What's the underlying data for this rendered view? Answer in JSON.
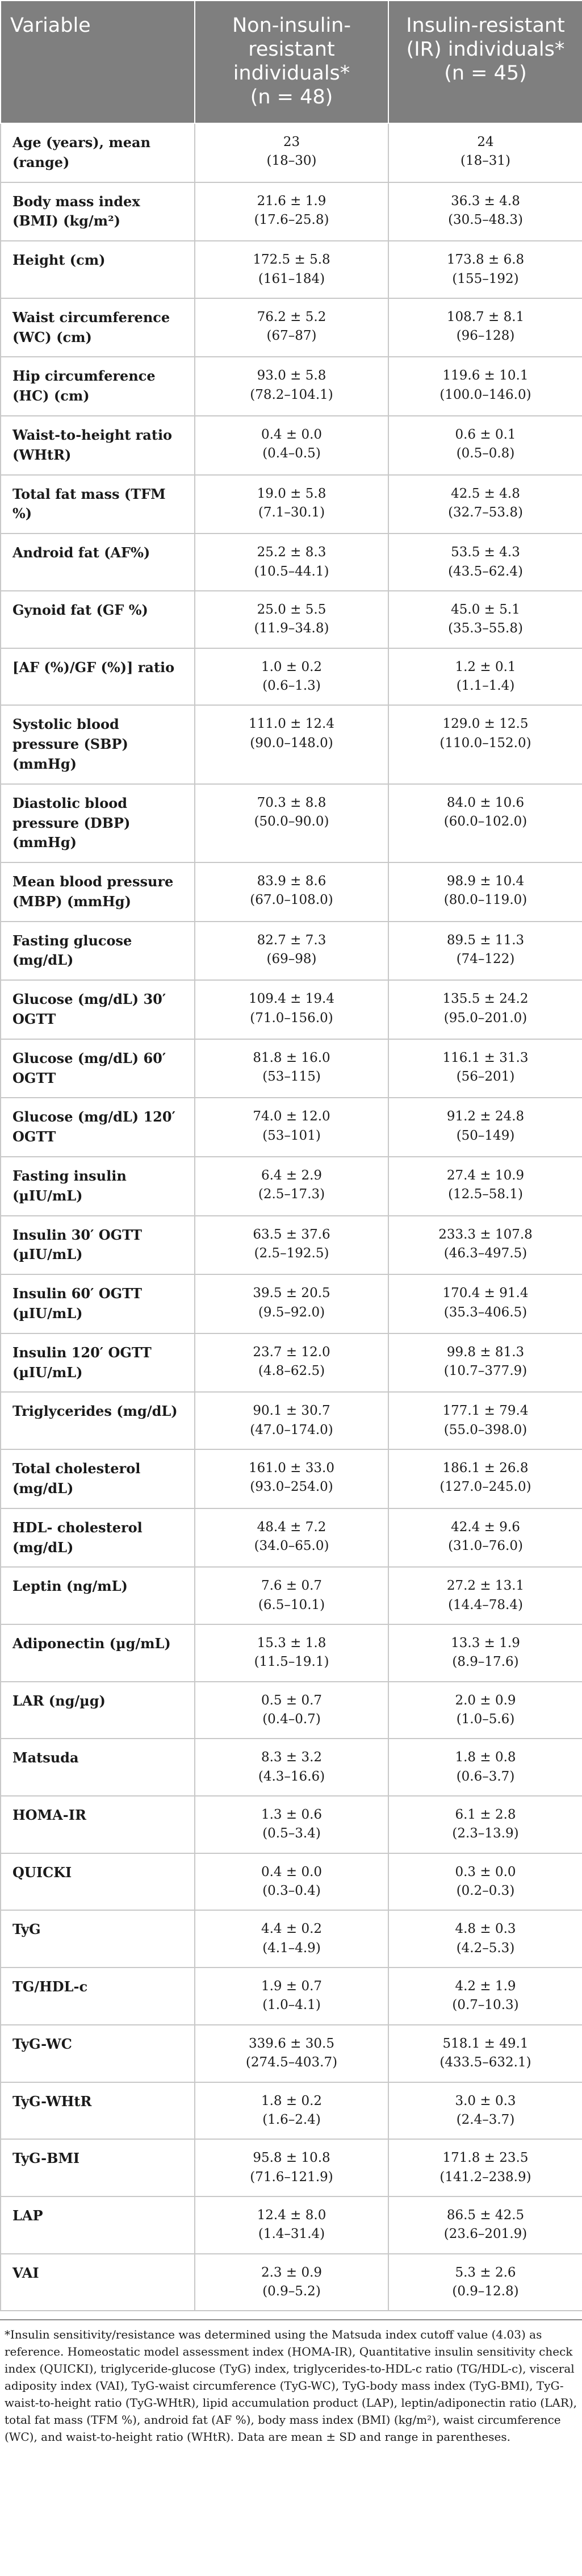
{
  "header": {
    "variable": "Variable",
    "group1_line1": "Non-insulin-",
    "group1_line2": "resistant",
    "group1_line3": "individuals*",
    "group1_n": "(n = 48)",
    "group2_line1": "Insulin-resistant",
    "group2_line2": "(IR) individuals*",
    "group2_n": "(n = 45)"
  },
  "rows": [
    {
      "label": "Age (years), mean (range)",
      "g1": "23",
      "g1r": "(18–30)",
      "g2": "24",
      "g2r": "(18–31)"
    },
    {
      "label": "Body mass index (BMI) (kg/m²)",
      "g1": "21.6 ± 1.9",
      "g1r": "(17.6–25.8)",
      "g2": "36.3 ± 4.8",
      "g2r": "(30.5–48.3)"
    },
    {
      "label": "Height (cm)",
      "g1": "172.5 ± 5.8",
      "g1r": "(161–184)",
      "g2": "173.8 ± 6.8",
      "g2r": "(155–192)"
    },
    {
      "label": "Waist circumference (WC) (cm)",
      "g1": "76.2 ± 5.2",
      "g1r": "(67–87)",
      "g2": "108.7 ± 8.1",
      "g2r": "(96–128)"
    },
    {
      "label": "Hip circumference (HC) (cm)",
      "g1": "93.0 ± 5.8",
      "g1r": "(78.2–104.1)",
      "g2": "119.6 ± 10.1",
      "g2r": "(100.0–146.0)"
    },
    {
      "label": "Waist-to-height ratio (WHtR)",
      "g1": "0.4 ± 0.0",
      "g1r": "(0.4–0.5)",
      "g2": "0.6 ± 0.1",
      "g2r": "(0.5–0.8)"
    },
    {
      "label": "Total fat mass (TFM %)",
      "g1": "19.0 ± 5.8",
      "g1r": "(7.1–30.1)",
      "g2": "42.5 ± 4.8",
      "g2r": "(32.7–53.8)"
    },
    {
      "label": "Android fat (AF%)",
      "g1": "25.2 ± 8.3",
      "g1r": "(10.5–44.1)",
      "g2": "53.5 ± 4.3",
      "g2r": "(43.5–62.4)"
    },
    {
      "label": "Gynoid fat (GF %)",
      "g1": "25.0 ± 5.5",
      "g1r": "(11.9–34.8)",
      "g2": "45.0 ± 5.1",
      "g2r": "(35.3–55.8)"
    },
    {
      "label": "[AF (%)/GF (%)] ratio",
      "g1": "1.0 ± 0.2",
      "g1r": "(0.6–1.3)",
      "g2": "1.2 ± 0.1",
      "g2r": "(1.1–1.4)"
    },
    {
      "label": "Systolic blood pressure (SBP) (mmHg)",
      "g1": "111.0 ± 12.4",
      "g1r": "(90.0–148.0)",
      "g2": "129.0 ± 12.5",
      "g2r": "(110.0–152.0)"
    },
    {
      "label": "Diastolic blood pressure (DBP) (mmHg)",
      "g1": "70.3 ± 8.8",
      "g1r": "(50.0–90.0)",
      "g2": "84.0 ± 10.6",
      "g2r": "(60.0–102.0)"
    },
    {
      "label": "Mean blood pressure (MBP) (mmHg)",
      "g1": "83.9 ± 8.6",
      "g1r": "(67.0–108.0)",
      "g2": "98.9 ± 10.4",
      "g2r": "(80.0–119.0)"
    },
    {
      "label": "Fasting glucose (mg/dL)",
      "g1": "82.7 ± 7.3",
      "g1r": "(69–98)",
      "g2": "89.5 ± 11.3",
      "g2r": "(74–122)"
    },
    {
      "label": "Glucose (mg/dL) 30′ OGTT",
      "g1": "109.4 ± 19.4",
      "g1r": "(71.0–156.0)",
      "g2": "135.5 ± 24.2",
      "g2r": "(95.0–201.0)"
    },
    {
      "label": "Glucose (mg/dL) 60′ OGTT",
      "g1": "81.8 ± 16.0",
      "g1r": "(53–115)",
      "g2": "116.1 ± 31.3",
      "g2r": "(56–201)"
    },
    {
      "label": "Glucose (mg/dL) 120′ OGTT",
      "g1": "74.0 ± 12.0",
      "g1r": "(53–101)",
      "g2": "91.2 ± 24.8",
      "g2r": "(50–149)"
    },
    {
      "label": "Fasting insulin (µIU/mL)",
      "g1": "6.4 ± 2.9",
      "g1r": "(2.5–17.3)",
      "g2": "27.4 ± 10.9",
      "g2r": "(12.5–58.1)"
    },
    {
      "label": "Insulin 30′ OGTT (µIU/mL)",
      "g1": "63.5 ± 37.6",
      "g1r": "(2.5–192.5)",
      "g2": "233.3 ± 107.8",
      "g2r": "(46.3–497.5)"
    },
    {
      "label": "Insulin 60′ OGTT (µIU/mL)",
      "g1": "39.5 ± 20.5",
      "g1r": "(9.5–92.0)",
      "g2": "170.4 ± 91.4",
      "g2r": "(35.3–406.5)"
    },
    {
      "label": "Insulin 120′ OGTT (µIU/mL)",
      "g1": "23.7 ± 12.0",
      "g1r": "(4.8–62.5)",
      "g2": "99.8 ± 81.3",
      "g2r": "(10.7–377.9)"
    },
    {
      "label": "Triglycerides (mg/dL)",
      "g1": "90.1 ± 30.7",
      "g1r": "(47.0–174.0)",
      "g2": "177.1 ± 79.4",
      "g2r": "(55.0–398.0)"
    },
    {
      "label": "Total cholesterol (mg/dL)",
      "g1": "161.0 ± 33.0",
      "g1r": "(93.0–254.0)",
      "g2": "186.1 ± 26.8",
      "g2r": "(127.0–245.0)"
    },
    {
      "label": "HDL- cholesterol (mg/dL)",
      "g1": "48.4 ± 7.2",
      "g1r": "(34.0–65.0)",
      "g2": "42.4 ± 9.6",
      "g2r": "(31.0–76.0)"
    },
    {
      "label": "Leptin (ng/mL)",
      "g1": "7.6 ± 0.7",
      "g1r": "(6.5–10.1)",
      "g2": "27.2 ± 13.1",
      "g2r": "(14.4–78.4)"
    },
    {
      "label": "Adiponectin (µg/mL)",
      "g1": "15.3 ± 1.8",
      "g1r": "(11.5–19.1)",
      "g2": "13.3 ± 1.9",
      "g2r": "(8.9–17.6)"
    },
    {
      "label": "LAR (ng/µg)",
      "g1": "0.5 ± 0.7",
      "g1r": "(0.4–0.7)",
      "g2": "2.0 ± 0.9",
      "g2r": "(1.0–5.6)"
    },
    {
      "label": "Matsuda",
      "g1": "8.3 ± 3.2",
      "g1r": "(4.3–16.6)",
      "g2": "1.8 ± 0.8",
      "g2r": "(0.6–3.7)"
    },
    {
      "label": "HOMA-IR",
      "g1": "1.3 ± 0.6",
      "g1r": "(0.5–3.4)",
      "g2": "6.1 ± 2.8",
      "g2r": "(2.3–13.9)"
    },
    {
      "label": "QUICKI",
      "g1": "0.4 ± 0.0",
      "g1r": "(0.3–0.4)",
      "g2": "0.3 ± 0.0",
      "g2r": "(0.2–0.3)"
    },
    {
      "label": "TyG",
      "g1": "4.4 ± 0.2",
      "g1r": "(4.1–4.9)",
      "g2": "4.8 ± 0.3",
      "g2r": "(4.2–5.3)"
    },
    {
      "label": "TG/HDL-c",
      "g1": "1.9 ± 0.7",
      "g1r": "(1.0–4.1)",
      "g2": "4.2 ± 1.9",
      "g2r": "(0.7–10.3)"
    },
    {
      "label": "TyG-WC",
      "g1": "339.6 ± 30.5",
      "g1r": "(274.5–403.7)",
      "g2": "518.1 ± 49.1",
      "g2r": "(433.5–632.1)"
    },
    {
      "label": "TyG-WHtR",
      "g1": "1.8 ± 0.2",
      "g1r": "(1.6–2.4)",
      "g2": "3.0 ± 0.3",
      "g2r": "(2.4–3.7)"
    },
    {
      "label": "TyG-BMI",
      "g1": "95.8 ± 10.8",
      "g1r": "(71.6–121.9)",
      "g2": "171.8 ± 23.5",
      "g2r": "(141.2–238.9)"
    },
    {
      "label": "LAP",
      "g1": "12.4 ± 8.0",
      "g1r": "(1.4–31.4)",
      "g2": "86.5 ± 42.5",
      "g2r": "(23.6–201.9)"
    },
    {
      "label": "VAI",
      "g1": "2.3 ± 0.9",
      "g1r": "(0.9–5.2)",
      "g2": "5.3 ± 2.6",
      "g2r": "(0.9–12.8)"
    }
  ],
  "footnote": "*Insulin sensitivity/resistance was determined using the Matsuda index cutoff value (4.03) as reference. Homeostatic model assessment index (HOMA-IR), Quantitative insulin sensitivity check index (QUICKI), triglyceride-glucose (TyG) index, triglycerides-to-HDL-c ratio (TG/HDL-c), visceral adiposity index (VAI), TyG-waist circumference (TyG-WC), TyG-body mass index (TyG-BMI), TyG-waist-to-height ratio (TyG-WHtR), lipid accumulation product (LAP), leptin/adiponectin ratio (LAR), total fat mass (TFM %), android fat (AF %), body mass index (BMI) (kg/m²), waist circumference (WC), and waist-to-height ratio (WHtR). Data are mean ± SD and range in parentheses."
}
